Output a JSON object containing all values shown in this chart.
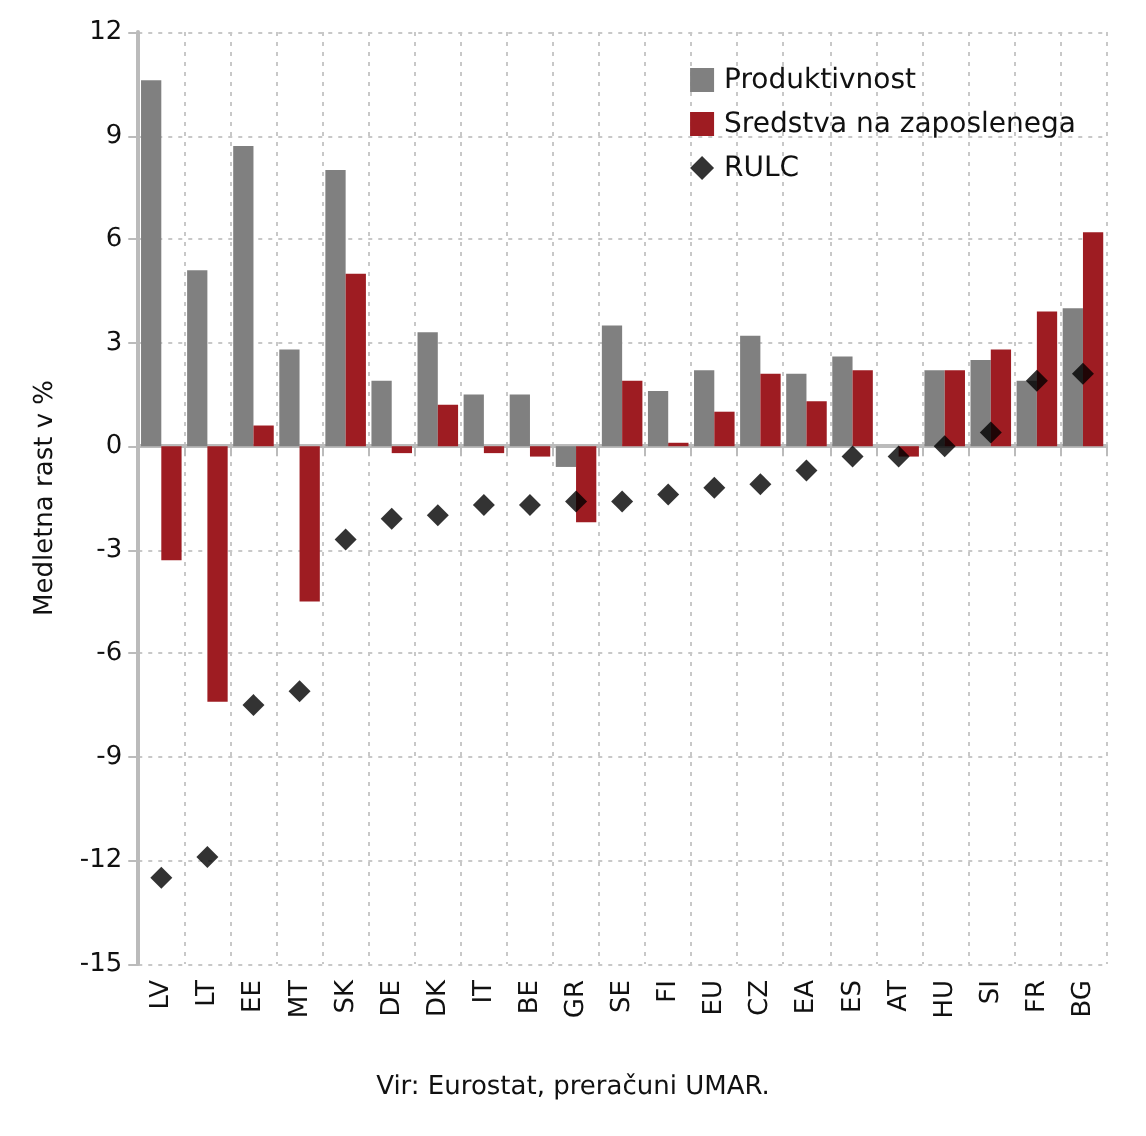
{
  "chart_data": {
    "type": "bar",
    "ylabel": "Medletna rast v %",
    "annotations": [
      "Vir: Eurostat, preračuni UMAR."
    ],
    "categories": [
      "LV",
      "LT",
      "EE",
      "MT",
      "SK",
      "DE",
      "DK",
      "IT",
      "BE",
      "GR",
      "SE",
      "FI",
      "EU",
      "CZ",
      "EA",
      "ES",
      "AT",
      "HU",
      "SI",
      "FR",
      "BG"
    ],
    "series": [
      {
        "name": "Produktivnost",
        "color": "#808080",
        "values": [
          10.6,
          5.1,
          8.7,
          2.8,
          8.0,
          1.9,
          3.3,
          1.5,
          1.5,
          -0.6,
          3.5,
          1.6,
          2.2,
          3.2,
          2.1,
          2.6,
          0,
          2.2,
          2.5,
          1.9,
          4.0
        ]
      },
      {
        "name": "Sredstva na zaposlenega",
        "color": "#9e1c22",
        "values": [
          -3.3,
          -7.4,
          0.6,
          -4.5,
          5.0,
          -0.2,
          1.2,
          -0.2,
          -0.3,
          -2.2,
          1.9,
          0.1,
          1.0,
          2.1,
          1.3,
          2.2,
          -0.3,
          2.2,
          2.8,
          3.9,
          6.2
        ]
      },
      {
        "name": "RULC",
        "type": "scatter",
        "marker": "diamond",
        "color": "#000000",
        "values": [
          -12.5,
          -11.9,
          -7.5,
          -7.1,
          -2.7,
          -2.1,
          -2.0,
          -1.7,
          -1.7,
          -1.6,
          -1.6,
          -1.4,
          -1.2,
          -1.1,
          -0.7,
          -0.3,
          -0.3,
          0.0,
          0.4,
          1.9,
          2.1
        ]
      }
    ],
    "ylim": [
      -15,
      12
    ],
    "yticks": [
      -15,
      -12,
      -9,
      -6,
      -3,
      0,
      3,
      6,
      9,
      12
    ],
    "grid": true,
    "legend": "top right"
  }
}
